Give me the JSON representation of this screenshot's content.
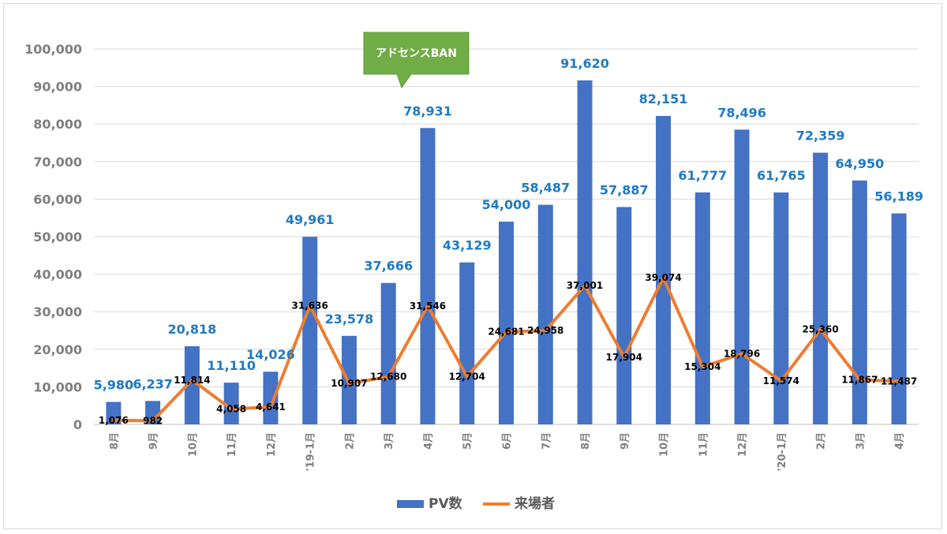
{
  "colors": {
    "bar": "#4472c4",
    "line": "#ed7d31",
    "grid": "#d9d9d9",
    "axis_text": "#7f7f7f",
    "pv_label": "#1f7ac2",
    "callout": "#70ad47"
  },
  "chart_data": {
    "type": "bar+line",
    "title": "",
    "categories": [
      "8月",
      "9月",
      "10月",
      "11月",
      "12月",
      "'19-1月",
      "2月",
      "3月",
      "4月",
      "5月",
      "6月",
      "7月",
      "8月",
      "9月",
      "10月",
      "11月",
      "12月",
      "'20-1月",
      "2月",
      "3月",
      "4月"
    ],
    "series": [
      {
        "name": "PV数",
        "type": "bar",
        "values": [
          5980,
          6237,
          20818,
          11110,
          14026,
          49961,
          23578,
          37666,
          78931,
          43129,
          54000,
          58487,
          91620,
          57887,
          82151,
          61777,
          78496,
          61765,
          72359,
          64950,
          56189
        ],
        "labels": [
          "5,980",
          "6,237",
          "20,818",
          "11,110",
          "14,026",
          "49,961",
          "23,578",
          "37,666",
          "78,931",
          "43,129",
          "54,000",
          "58,487",
          "91,620",
          "57,887",
          "82,151",
          "61,777",
          "78,496",
          "61,765",
          "72,359",
          "64,950",
          "56,189"
        ]
      },
      {
        "name": "来場者",
        "type": "line",
        "values": [
          1076,
          982,
          11814,
          4058,
          4641,
          31636,
          10907,
          12680,
          31546,
          12704,
          24681,
          24958,
          37001,
          17904,
          39074,
          15304,
          18796,
          11574,
          25360,
          11867,
          11487
        ],
        "labels": [
          "1,076",
          "982",
          "11,814",
          "4,058",
          "4,641",
          "31,636",
          "10,907",
          "12,680",
          "31,546",
          "12,704",
          "24,681",
          "24,958",
          "37,001",
          "17,904",
          "39,074",
          "15,304",
          "18,796",
          "11,574",
          "25,360",
          "11,867",
          "11,487"
        ]
      }
    ],
    "ylim": [
      0,
      100000
    ],
    "yticks": [
      0,
      10000,
      20000,
      30000,
      40000,
      50000,
      60000,
      70000,
      80000,
      90000,
      100000
    ],
    "ytick_labels": [
      "0",
      "10,000",
      "20,000",
      "30,000",
      "40,000",
      "50,000",
      "60,000",
      "70,000",
      "80,000",
      "90,000",
      "100,000"
    ],
    "xlabel": "",
    "ylabel": "",
    "grid": true,
    "legend": "bottom-center",
    "annotation": {
      "text": "アドセンスBAN",
      "category_index": 8
    }
  }
}
